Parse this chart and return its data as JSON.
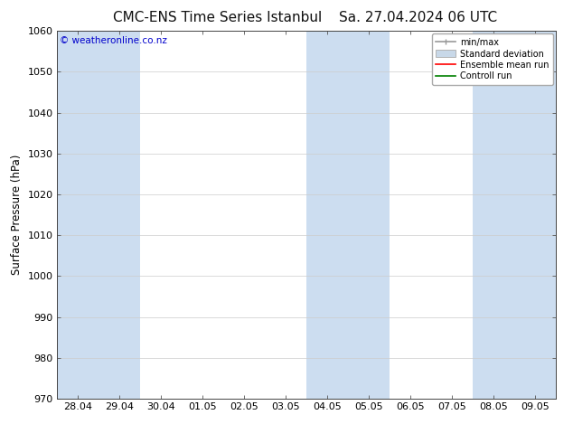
{
  "title": "CMC-ENS Time Series Istanbul",
  "title2": "Sa. 27.04.2024 06 UTC",
  "ylabel": "Surface Pressure (hPa)",
  "ylim": [
    970,
    1060
  ],
  "yticks": [
    970,
    980,
    990,
    1000,
    1010,
    1020,
    1030,
    1040,
    1050,
    1060
  ],
  "x_labels": [
    "28.04",
    "29.04",
    "30.04",
    "01.05",
    "02.05",
    "03.05",
    "04.05",
    "05.05",
    "06.05",
    "07.05",
    "08.05",
    "09.05"
  ],
  "watermark": "© weatheronline.co.nz",
  "watermark_color": "#0000cc",
  "bg_color": "#ffffff",
  "plot_bg_color": "#ffffff",
  "shade_color": "#ccddf0",
  "shade_alpha": 1.0,
  "shade_positions": [
    0,
    1,
    6,
    7,
    10,
    11
  ],
  "legend_entries": [
    "min/max",
    "Standard deviation",
    "Ensemble mean run",
    "Controll run"
  ],
  "legend_colors_line": [
    "#999999",
    "#bbbbbb",
    "#ff0000",
    "#008000"
  ],
  "title_fontsize": 11,
  "tick_fontsize": 8,
  "label_fontsize": 8.5,
  "watermark_fontsize": 7.5
}
